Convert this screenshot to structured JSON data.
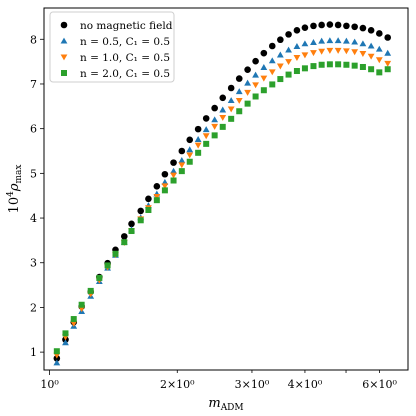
{
  "chart_data": {
    "type": "scatter",
    "x_scale": "log",
    "xlabel": "m",
    "xlabel_sub": "ADM",
    "ylabel_prefix": "10",
    "ylabel_sup": "4",
    "ylabel_symbol": "ρ",
    "ylabel_sub": "max",
    "xlim": [
      0.97,
      7.0
    ],
    "ylim": [
      0.6,
      8.7
    ],
    "y_ticks": [
      1,
      2,
      3,
      4,
      5,
      6,
      7,
      8
    ],
    "x_major_ticks": [
      {
        "value": 1,
        "label": "10⁰"
      }
    ],
    "x_minor_ticks": [
      {
        "value": 2,
        "label": "2×10⁰"
      },
      {
        "value": 3,
        "label": "3×10⁰"
      },
      {
        "value": 4,
        "label": "4×10⁰"
      },
      {
        "value": 5,
        "label": ""
      },
      {
        "value": 6,
        "label": "6×10⁰"
      }
    ],
    "legend_position": "top-left",
    "series": [
      {
        "name": "no magnetic field",
        "color": "#000000",
        "marker": "circle",
        "points": [
          [
            1.04,
            0.86
          ],
          [
            1.09,
            1.28
          ],
          [
            1.14,
            1.67
          ],
          [
            1.19,
            2.02
          ],
          [
            1.25,
            2.35
          ],
          [
            1.31,
            2.68
          ],
          [
            1.37,
            2.99
          ],
          [
            1.43,
            3.29
          ],
          [
            1.5,
            3.59
          ],
          [
            1.56,
            3.87
          ],
          [
            1.64,
            4.16
          ],
          [
            1.71,
            4.43
          ],
          [
            1.79,
            4.71
          ],
          [
            1.87,
            4.98
          ],
          [
            1.96,
            5.24
          ],
          [
            2.05,
            5.5
          ],
          [
            2.14,
            5.75
          ],
          [
            2.24,
            5.99
          ],
          [
            2.34,
            6.23
          ],
          [
            2.45,
            6.46
          ],
          [
            2.56,
            6.69
          ],
          [
            2.68,
            6.91
          ],
          [
            2.8,
            7.12
          ],
          [
            2.93,
            7.32
          ],
          [
            3.06,
            7.51
          ],
          [
            3.2,
            7.69
          ],
          [
            3.35,
            7.85
          ],
          [
            3.5,
            7.99
          ],
          [
            3.66,
            8.11
          ],
          [
            3.83,
            8.2
          ],
          [
            4.0,
            8.26
          ],
          [
            4.19,
            8.3
          ],
          [
            4.38,
            8.32
          ],
          [
            4.58,
            8.33
          ],
          [
            4.79,
            8.32
          ],
          [
            5.01,
            8.3
          ],
          [
            5.24,
            8.28
          ],
          [
            5.48,
            8.25
          ],
          [
            5.73,
            8.2
          ],
          [
            5.99,
            8.13
          ],
          [
            6.27,
            8.04
          ]
        ]
      },
      {
        "name": "n = 0.5, C₁ = 0.5",
        "color": "#1f77b4",
        "marker": "triangle-up",
        "points": [
          [
            1.04,
            0.76
          ],
          [
            1.09,
            1.21
          ],
          [
            1.14,
            1.58
          ],
          [
            1.19,
            1.91
          ],
          [
            1.25,
            2.25
          ],
          [
            1.31,
            2.58
          ],
          [
            1.37,
            2.88
          ],
          [
            1.43,
            3.17
          ],
          [
            1.5,
            3.46
          ],
          [
            1.56,
            3.74
          ],
          [
            1.64,
            4.01
          ],
          [
            1.71,
            4.28
          ],
          [
            1.79,
            4.54
          ],
          [
            1.87,
            4.8
          ],
          [
            1.96,
            5.05
          ],
          [
            2.05,
            5.29
          ],
          [
            2.14,
            5.53
          ],
          [
            2.24,
            5.76
          ],
          [
            2.34,
            5.98
          ],
          [
            2.45,
            6.2
          ],
          [
            2.56,
            6.42
          ],
          [
            2.68,
            6.63
          ],
          [
            2.8,
            6.83
          ],
          [
            2.93,
            7.02
          ],
          [
            3.06,
            7.2
          ],
          [
            3.2,
            7.37
          ],
          [
            3.35,
            7.52
          ],
          [
            3.5,
            7.65
          ],
          [
            3.66,
            7.76
          ],
          [
            3.83,
            7.84
          ],
          [
            4.0,
            7.9
          ],
          [
            4.19,
            7.93
          ],
          [
            4.38,
            7.96
          ],
          [
            4.58,
            7.97
          ],
          [
            4.79,
            7.97
          ],
          [
            5.01,
            7.96
          ],
          [
            5.24,
            7.94
          ],
          [
            5.48,
            7.9
          ],
          [
            5.73,
            7.85
          ],
          [
            5.99,
            7.78
          ],
          [
            6.27,
            7.69
          ]
        ]
      },
      {
        "name": "n = 1.0, C₁ = 0.5",
        "color": "#ff7f0e",
        "marker": "triangle-down",
        "points": [
          [
            1.04,
            0.93
          ],
          [
            1.09,
            1.34
          ],
          [
            1.14,
            1.64
          ],
          [
            1.19,
            1.97
          ],
          [
            1.25,
            2.3
          ],
          [
            1.31,
            2.61
          ],
          [
            1.37,
            2.9
          ],
          [
            1.43,
            3.18
          ],
          [
            1.5,
            3.45
          ],
          [
            1.56,
            3.72
          ],
          [
            1.64,
            3.98
          ],
          [
            1.71,
            4.23
          ],
          [
            1.79,
            4.48
          ],
          [
            1.87,
            4.72
          ],
          [
            1.96,
            4.96
          ],
          [
            2.05,
            5.19
          ],
          [
            2.14,
            5.41
          ],
          [
            2.24,
            5.63
          ],
          [
            2.34,
            5.84
          ],
          [
            2.45,
            6.05
          ],
          [
            2.56,
            6.25
          ],
          [
            2.68,
            6.44
          ],
          [
            2.8,
            6.63
          ],
          [
            2.93,
            6.81
          ],
          [
            3.06,
            6.98
          ],
          [
            3.2,
            7.13
          ],
          [
            3.35,
            7.27
          ],
          [
            3.5,
            7.4
          ],
          [
            3.66,
            7.5
          ],
          [
            3.83,
            7.59
          ],
          [
            4.0,
            7.65
          ],
          [
            4.19,
            7.7
          ],
          [
            4.38,
            7.73
          ],
          [
            4.58,
            7.75
          ],
          [
            4.79,
            7.75
          ],
          [
            5.01,
            7.74
          ],
          [
            5.24,
            7.72
          ],
          [
            5.48,
            7.68
          ],
          [
            5.73,
            7.62
          ],
          [
            5.99,
            7.54
          ],
          [
            6.27,
            7.46
          ]
        ]
      },
      {
        "name": "n = 2.0, C₁ = 0.5",
        "color": "#2ca02c",
        "marker": "square",
        "points": [
          [
            1.04,
            1.02
          ],
          [
            1.09,
            1.42
          ],
          [
            1.14,
            1.74
          ],
          [
            1.19,
            2.06
          ],
          [
            1.25,
            2.37
          ],
          [
            1.31,
            2.66
          ],
          [
            1.37,
            2.94
          ],
          [
            1.43,
            3.2
          ],
          [
            1.5,
            3.46
          ],
          [
            1.56,
            3.71
          ],
          [
            1.64,
            3.95
          ],
          [
            1.71,
            4.18
          ],
          [
            1.79,
            4.4
          ],
          [
            1.87,
            4.62
          ],
          [
            1.96,
            4.84
          ],
          [
            2.05,
            5.05
          ],
          [
            2.14,
            5.26
          ],
          [
            2.24,
            5.46
          ],
          [
            2.34,
            5.66
          ],
          [
            2.45,
            5.85
          ],
          [
            2.56,
            6.04
          ],
          [
            2.68,
            6.22
          ],
          [
            2.8,
            6.39
          ],
          [
            2.93,
            6.56
          ],
          [
            3.06,
            6.72
          ],
          [
            3.2,
            6.86
          ],
          [
            3.35,
            6.99
          ],
          [
            3.5,
            7.11
          ],
          [
            3.66,
            7.21
          ],
          [
            3.83,
            7.29
          ],
          [
            4.0,
            7.35
          ],
          [
            4.19,
            7.4
          ],
          [
            4.38,
            7.43
          ],
          [
            4.58,
            7.44
          ],
          [
            4.79,
            7.44
          ],
          [
            5.01,
            7.43
          ],
          [
            5.24,
            7.41
          ],
          [
            5.48,
            7.38
          ],
          [
            5.73,
            7.33
          ],
          [
            5.99,
            7.26
          ],
          [
            6.27,
            7.33
          ]
        ]
      }
    ]
  }
}
